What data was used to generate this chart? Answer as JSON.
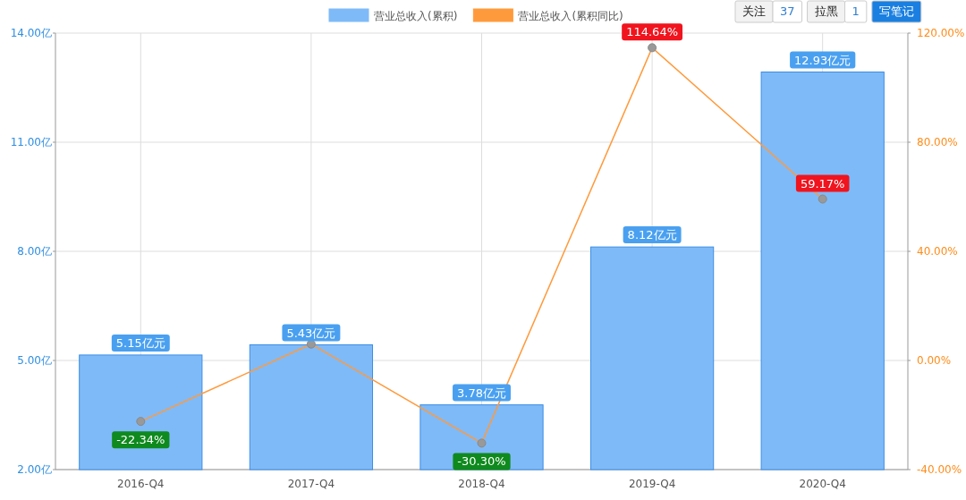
{
  "chart_data": {
    "type": "bar",
    "categories": [
      "2016-Q4",
      "2017-Q4",
      "2018-Q4",
      "2019-Q4",
      "2020-Q4"
    ],
    "series": [
      {
        "name": "营业总收入(累积)",
        "color": "#7fbaf8",
        "values": [
          5.15,
          5.43,
          3.78,
          8.12,
          12.93
        ],
        "value_labels": [
          "5.15亿元",
          "5.43亿元",
          "3.78亿元",
          "8.12亿元",
          "12.93亿元"
        ]
      },
      {
        "name": "营业总收入(累积同比)",
        "type": "line",
        "axis": "y2",
        "color": "#ff9a3c",
        "values": [
          -22.34,
          6,
          -30.3,
          114.64,
          59.17
        ],
        "value_labels": [
          "-22.34%",
          null,
          "-30.30%",
          "114.64%",
          "59.17%"
        ]
      }
    ],
    "ylim": [
      2,
      14
    ],
    "yticks": [
      {
        "value": 2,
        "label": "2.00亿"
      },
      {
        "value": 5,
        "label": "5.00亿"
      },
      {
        "value": 8,
        "label": "8.00亿"
      },
      {
        "value": 11,
        "label": "11.00亿"
      },
      {
        "value": 14,
        "label": "14.00亿"
      }
    ],
    "y2lim": [
      -40,
      120
    ],
    "y2ticks": [
      {
        "value": -40,
        "label": "-40.00%"
      },
      {
        "value": 0,
        "label": "0.00%"
      },
      {
        "value": 40,
        "label": "40.00%"
      },
      {
        "value": 80,
        "label": "80.00%"
      },
      {
        "value": 120,
        "label": "120.00%"
      }
    ],
    "grid": true,
    "legend": "top",
    "marker": "circle",
    "annotations": [
      "关注",
      "37",
      "拉黑",
      "1",
      "写笔记"
    ]
  }
}
